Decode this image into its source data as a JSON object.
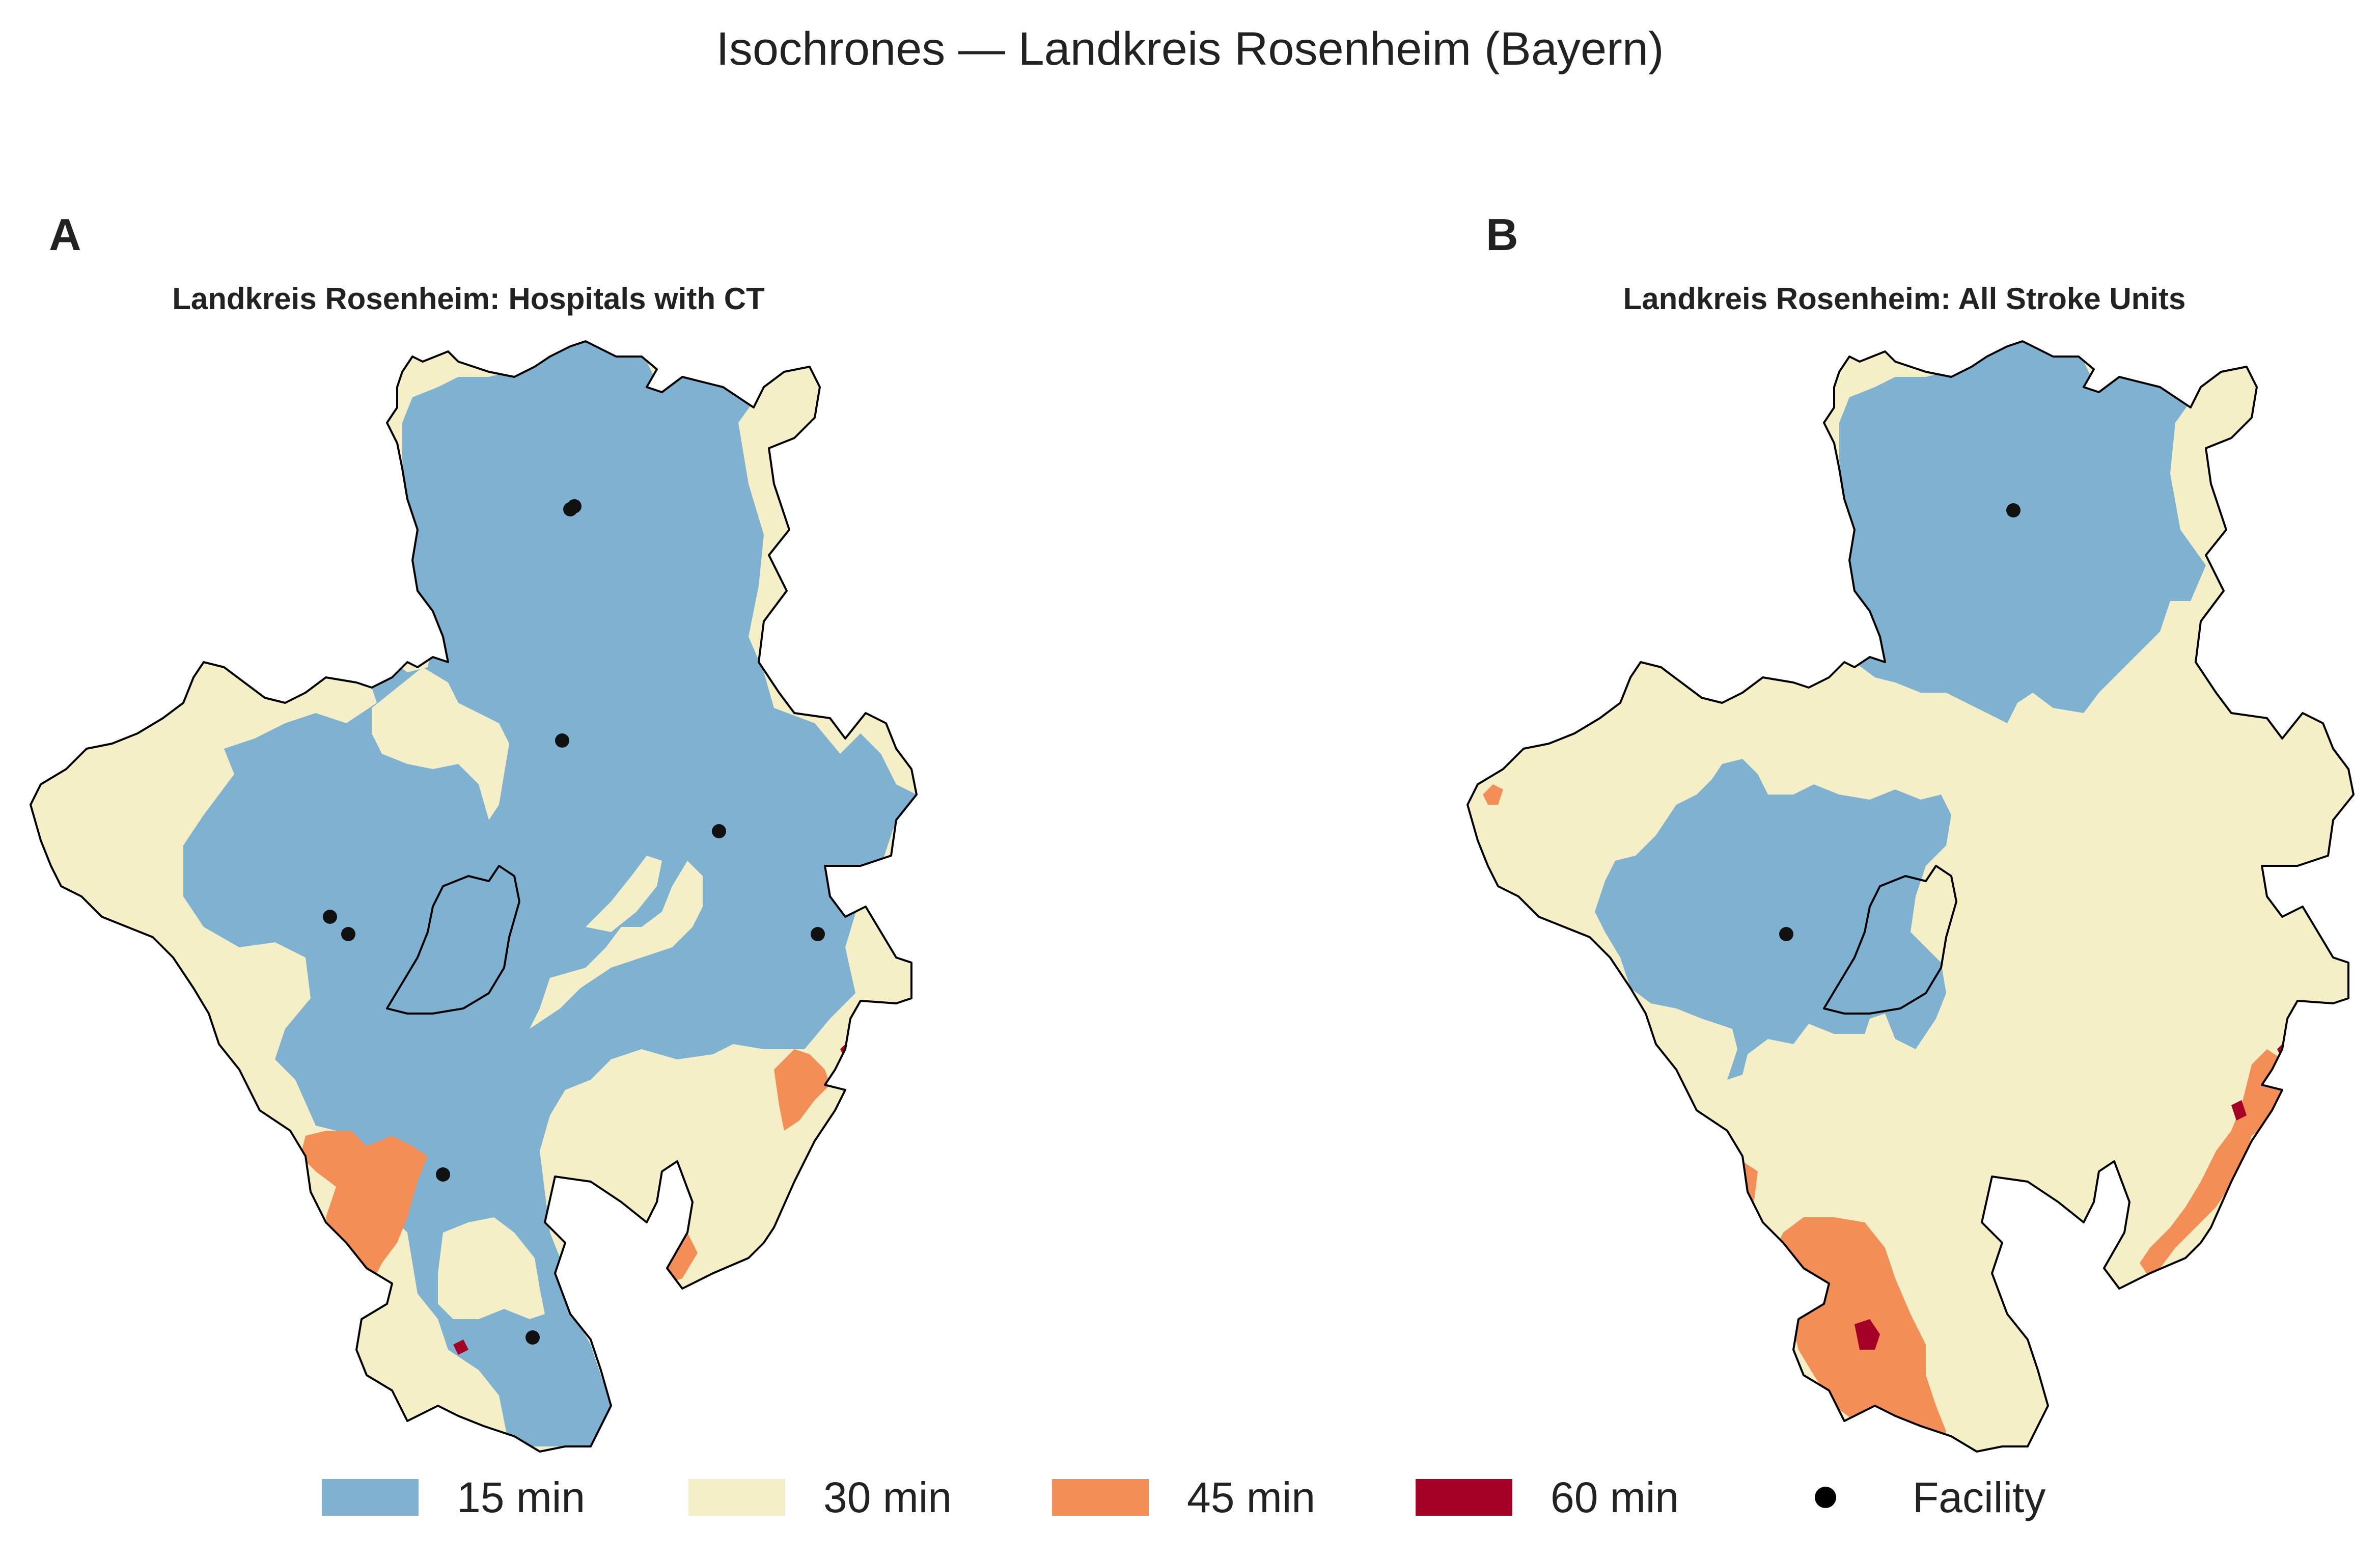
{
  "title": "Isochrones — Landkreis Rosenheim (Bayern)",
  "panels": [
    {
      "letter": "A",
      "title": "Landkreis Rosenheim: Hospitals with CT"
    },
    {
      "letter": "B",
      "title": "Landkreis Rosenheim: All Stroke Units"
    }
  ],
  "legend": {
    "items": [
      {
        "label": "15 min",
        "color": "#7fb1d1"
      },
      {
        "label": "30 min",
        "color": "#f4efc6"
      },
      {
        "label": "45 min",
        "color": "#f28e56"
      },
      {
        "label": "60 min",
        "color": "#a50026"
      },
      {
        "label": "Facility",
        "color": "#000000"
      }
    ]
  },
  "colors": {
    "band_15": "#7fb1d1",
    "band_30": "#f4efc6",
    "band_45": "#f28e56",
    "band_60": "#a50026",
    "outline": "#000000",
    "facility": "#111111"
  }
}
